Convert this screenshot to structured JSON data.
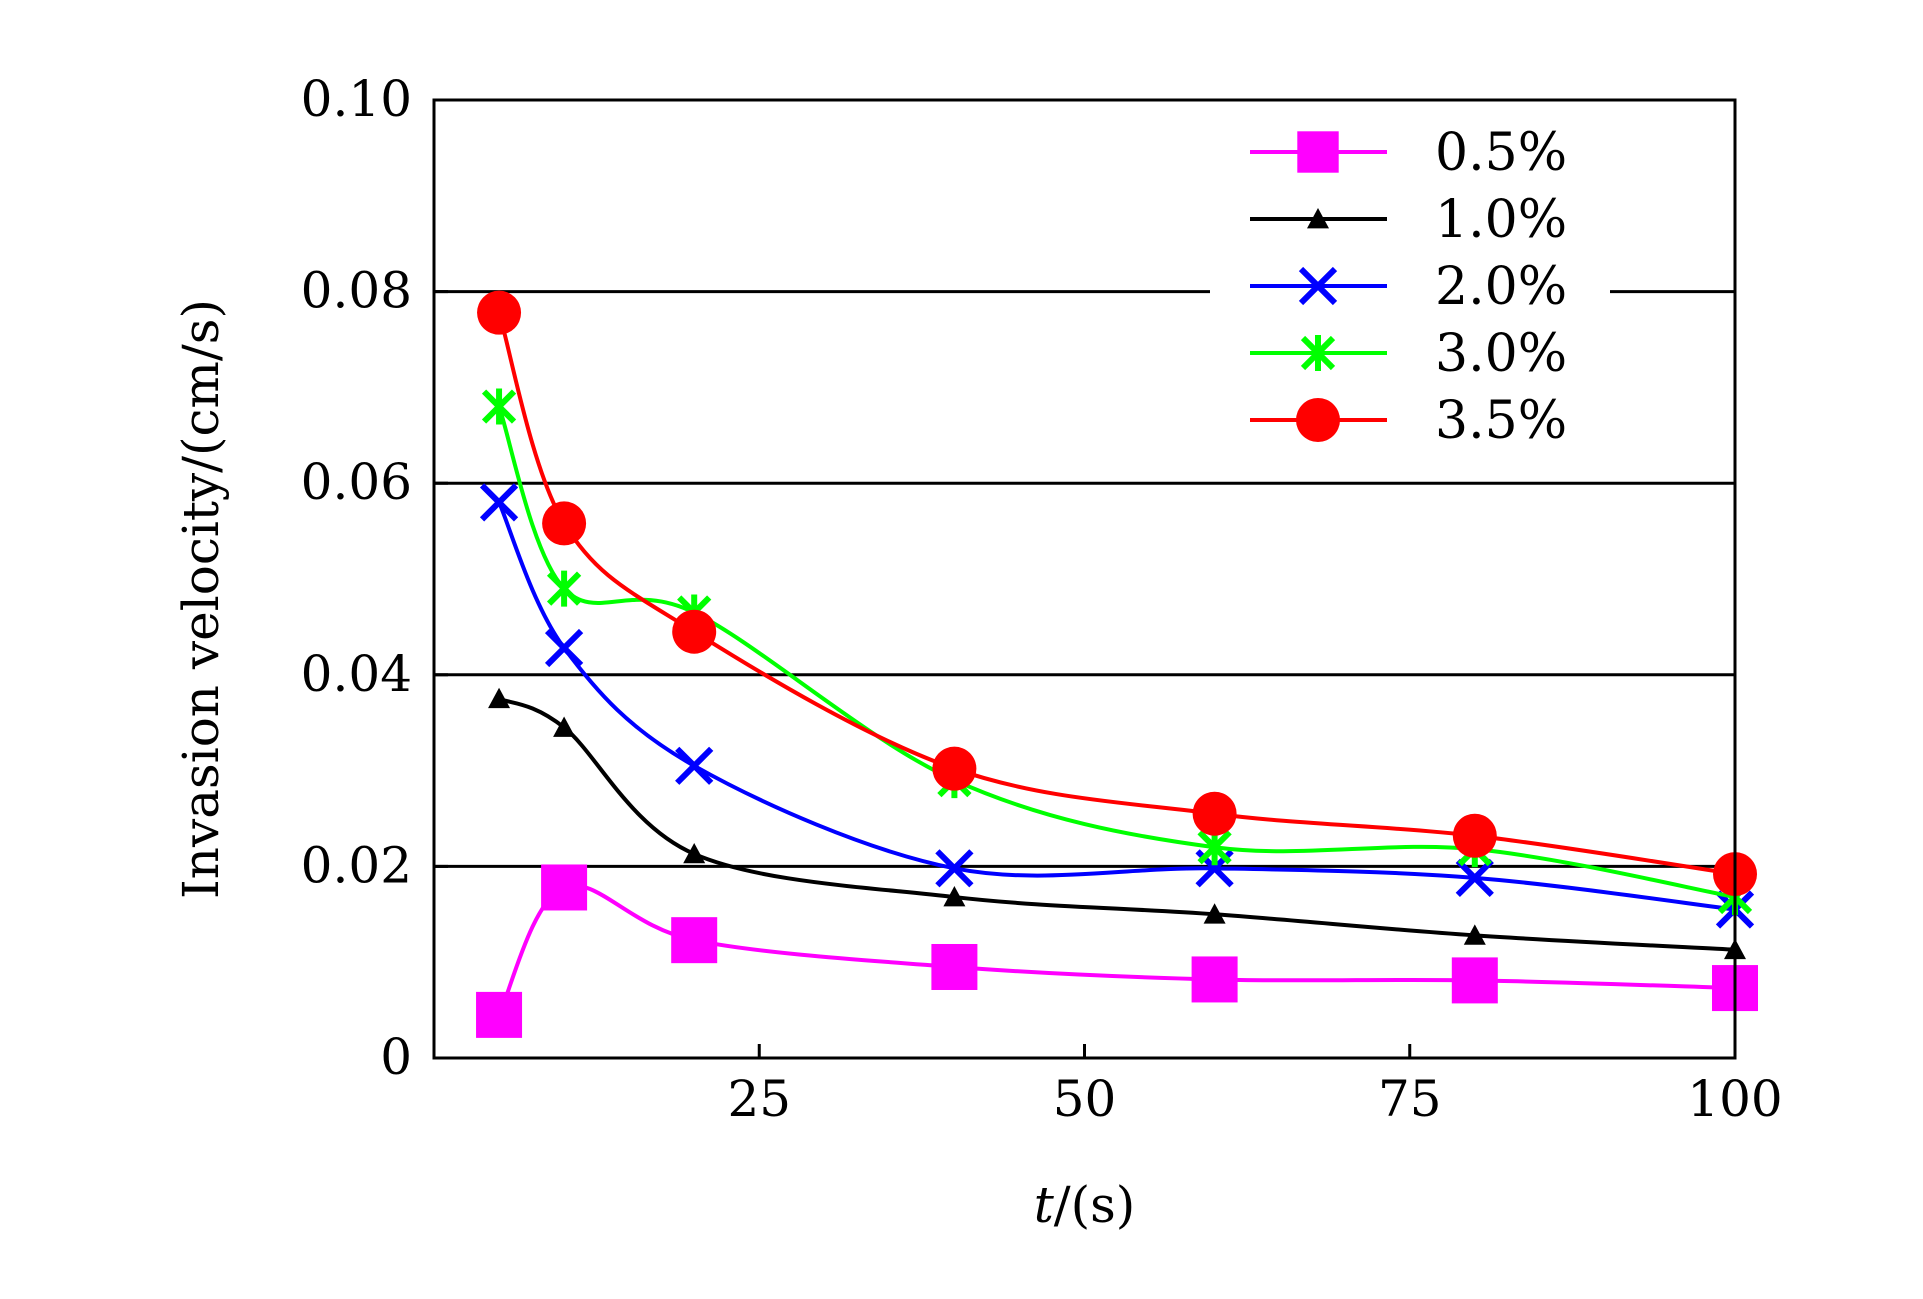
{
  "chart_data": {
    "type": "line",
    "xlabel_italic": "t",
    "xlabel_rest": "/(s)",
    "ylabel": "Invasion velocity/(cm/s)",
    "xlim": [
      0,
      100
    ],
    "ylim": [
      0,
      0.1
    ],
    "x_ticks": [
      "25",
      "50",
      "75",
      "100"
    ],
    "y_ticks": [
      "0",
      "0.02",
      "0.04",
      "0.06",
      "0.08",
      "0.10"
    ],
    "grid": "horizontal",
    "legend_position": "top-right",
    "series": [
      {
        "name": "0.5%",
        "color": "#ff00ff",
        "marker": "square",
        "x": [
          5,
          10,
          20,
          40,
          60,
          80,
          100
        ],
        "y": [
          0.0045,
          0.0178,
          0.0123,
          0.0095,
          0.0082,
          0.0081,
          0.0073
        ]
      },
      {
        "name": "1.0%",
        "color": "#000000",
        "marker": "triangle",
        "x": [
          5,
          10,
          20,
          40,
          60,
          80,
          100
        ],
        "y": [
          0.0375,
          0.0345,
          0.0213,
          0.0168,
          0.015,
          0.0128,
          0.0113
        ]
      },
      {
        "name": "2.0%",
        "color": "#0000ff",
        "marker": "x",
        "x": [
          5,
          10,
          20,
          40,
          60,
          80,
          100
        ],
        "y": [
          0.058,
          0.0428,
          0.0305,
          0.0198,
          0.0198,
          0.0188,
          0.0155
        ]
      },
      {
        "name": "3.0%",
        "color": "#00ff00",
        "marker": "asterisk",
        "x": [
          5,
          10,
          20,
          40,
          60,
          80,
          100
        ],
        "y": [
          0.068,
          0.049,
          0.0465,
          0.029,
          0.022,
          0.0218,
          0.0168
        ]
      },
      {
        "name": "3.5%",
        "color": "#ff0000",
        "marker": "circle",
        "x": [
          5,
          10,
          20,
          40,
          60,
          80,
          100
        ],
        "y": [
          0.0778,
          0.0558,
          0.0445,
          0.0302,
          0.0255,
          0.0232,
          0.0192
        ]
      }
    ]
  }
}
